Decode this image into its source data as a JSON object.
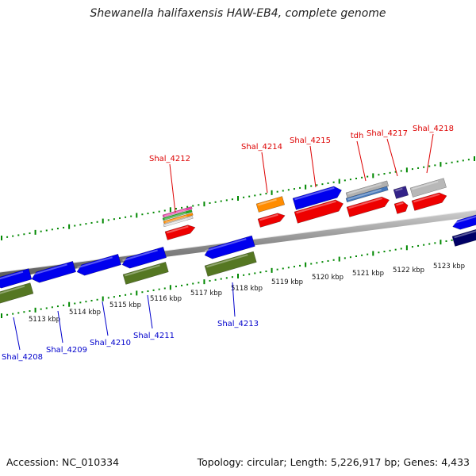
{
  "title": "Shewanella halifaxensis HAW-EB4, complete genome",
  "footer": {
    "accession": "Accession: NC_010334",
    "topology": "Topology: circular; Length: 5,226,917 bp; Genes: 4,433"
  },
  "colors": {
    "forward_label": "#dd0000",
    "reverse_label": "#0000cc",
    "tick": "#008800",
    "backbone": "#888888"
  },
  "kbp_labels": [
    "5113 kbp",
    "5114 kbp",
    "5115 kbp",
    "5116 kbp",
    "5117 kbp",
    "5118 kbp",
    "5119 kbp",
    "5120 kbp",
    "5121 kbp",
    "5122 kbp",
    "5123 kbp"
  ],
  "forward_genes": [
    "Shal_4212",
    "Shal_4214",
    "Shal_4215",
    "tdh",
    "Shal_4217",
    "Shal_4218"
  ],
  "reverse_genes": [
    "Shal_4208",
    "Shal_4209",
    "Shal_4210",
    "Shal_4211",
    "Shal_4213"
  ]
}
